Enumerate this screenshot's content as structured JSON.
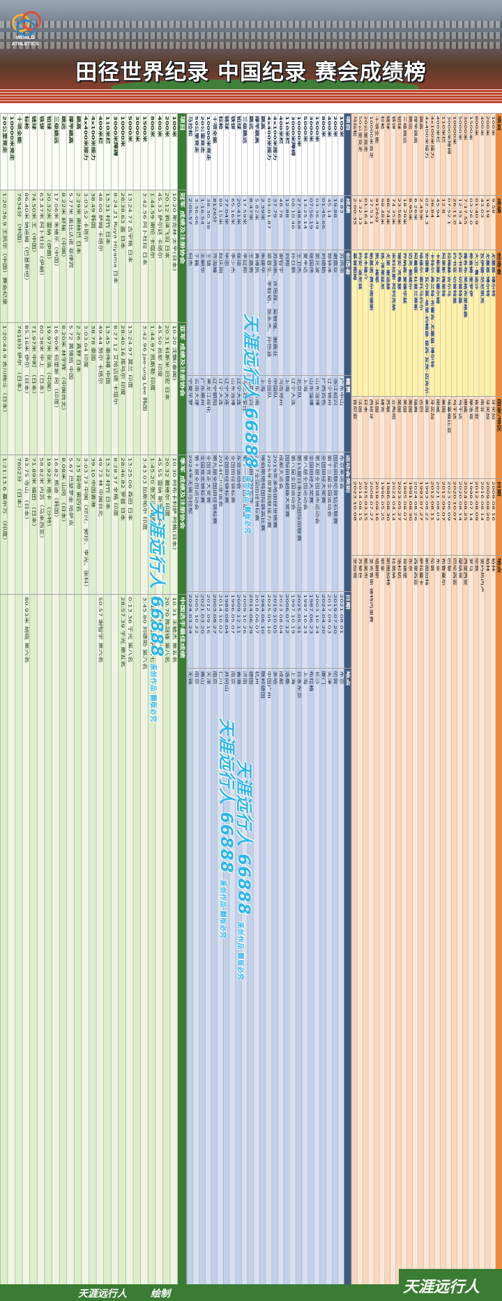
{
  "header": {
    "logo_text": "WORLD\nATHLETICS",
    "title": "田径世界纪录  中国纪录  赛会成绩榜"
  },
  "world_records": {
    "headers": [
      "项目",
      "成绩",
      "创造者",
      "国家/地区",
      "日期",
      "地点"
    ],
    "rows": [
      [
        "100米",
        "9.58",
        "尤塞恩·博尔特",
        "牙买加",
        "2009.08.16",
        "柏林"
      ],
      [
        "200米",
        "19.19",
        "尤塞恩·博尔特",
        "牙买加",
        "2009.08.20",
        "柏林"
      ],
      [
        "400米",
        "43.03",
        "瓦伊德·范尼凯克",
        "南非",
        "2016.08.14",
        "里约热内卢"
      ],
      [
        "800米",
        "01:40.9",
        "大卫·鲁迪沙",
        "肯尼亚",
        "2012.08.09",
        "伦敦"
      ],
      [
        "1500米",
        "03:26.0",
        "希查姆·奎罗伊",
        "摩洛哥",
        "1998.07.14",
        "罗马"
      ],
      [
        "3000米",
        "7:17.55",
        "雅各布·英格布里格森",
        "挪威",
        "2024.08.25",
        "西里西亚"
      ],
      [
        "5000米",
        "12:35.4",
        "约书亚·切普特盖",
        "乌干达",
        "2020.08.14",
        "摩纳哥"
      ],
      [
        "10000米",
        "26:11.0",
        "约书亚·切普特盖",
        "乌干达",
        "2020.10.07",
        "巴伦西亚"
      ],
      [
        "3000米障碍",
        "07:52.1",
        "拉梅赫·吉尔马",
        "埃塞俄比亚",
        "2023.06.09",
        "巴黎"
      ],
      [
        "110米栏",
        "12.8",
        "阿里斯·梅里特",
        "美国",
        "2012.09.07",
        "布鲁塞尔"
      ],
      [
        "400米栏",
        "45.94",
        "卡斯滕·瓦霍尔姆",
        "挪威",
        "2021.08.03",
        "东京"
      ],
      [
        "4x100米接力",
        "36.84",
        "卡特尔·弗兰特·布雷克·尤塞恩·博尔特",
        "牙买加",
        "2012.08.11",
        "伦敦"
      ],
      [
        "4x400米接力",
        "02:54.3",
        "安德鲁·瓦尔莫·哈里·约翰逊·昆西·瓦茨·迈克尔·约翰逊",
        "美国",
        "1993.08.22",
        "斯图加特"
      ],
      [
        "跳高",
        "2.45米",
        "哈维尔·索托马约尔",
        "古巴",
        "1993.07.27",
        "萨拉曼卡"
      ],
      [
        "撑竿跳高",
        "6.26米",
        "阿曼德·杜普兰蒂斯",
        "瑞典",
        "2024.08.26",
        "西里西亚"
      ],
      [
        "跳远",
        "8.95米",
        "迈克·鲍威尔",
        "美国",
        "1991.08.30",
        "东京"
      ],
      [
        "三级跳远",
        "18.29米",
        "乔纳森·爱德华兹",
        "英国",
        "1995.08.07",
        "哥德堡"
      ],
      [
        "铅球",
        "23.56米",
        "瑞安·克鲁瑟",
        "美国",
        "2023.05.27",
        "洛杉矶"
      ],
      [
        "铁饼",
        "74.35米",
        "米科拉斯·阿列克纳",
        "立陶宛",
        "2024.04.14",
        "拉莫纳"
      ],
      [
        "链球",
        "86.74米",
        "尤里·谢迪赫",
        "苏联",
        "1986.08.30",
        "斯图加特"
      ],
      [
        "标枪",
        "98.48米",
        "扬·泽莱兹尼",
        "捷克",
        "1996.05.25",
        "耶拿"
      ],
      [
        "十项全能",
        "9126分",
        "凯文·梅耶",
        "法国",
        "2018.09.16",
        "塔朗斯"
      ],
      [
        "10000米竞走",
        "37:53.1",
        "帕基诺·费尔南德斯",
        "西班牙",
        "2008.07.27",
        "圣克鲁斯·德特内里费"
      ],
      [
        "20公里竞走",
        "01:16.4",
        "铃木雄介",
        "日本",
        "2015.03.15",
        "能美市"
      ],
      [
        "50公里竞走",
        "3:32:33",
        "约安·迪尼兹",
        "法国",
        "2014.08.15",
        "苏黎世"
      ],
      [
        "马拉松",
        "2:00:35",
        "基普图姆",
        "肯尼亚",
        "2023.10.08",
        "芝加哥"
      ]
    ]
  },
  "china_records": {
    "headers": [
      "项目",
      "成绩",
      "创造者",
      "籍贯",
      "运动会类别",
      "日期",
      "地点"
    ],
    "rows": [
      [
        "100米",
        "9.83",
        "苏炳添",
        "广东中山",
        "东京奥运会",
        "2021.08.01",
        "东京"
      ],
      [
        "200米",
        "19.88",
        "谢震业",
        "浙江绍兴",
        "国际田联伦敦钻石联赛",
        "2019.07.20",
        "伦敦"
      ],
      [
        "400米",
        "45.14",
        "郭钟泽",
        "辽宁锦州",
        "第十三届全国运动会",
        "2017.09.03",
        "天津"
      ],
      [
        "800米",
        "01:45.66",
        "刘德助",
        "广西百色",
        "全国田径大奖赛",
        "2024.04.20",
        "厦门"
      ],
      [
        "1500米",
        "03:36.49",
        "窦兆波",
        "山东淄博",
        "第五届全国城市运动会",
        "2003.10.24",
        "长沙"
      ],
      [
        "3000米",
        "07:56.19",
        "张国伟",
        "山东淄博",
        "全国田径大奖赛",
        "1987.06.23",
        "布拉格"
      ],
      [
        "5000米",
        "13:25.14",
        "夏丰远",
        "上海",
        "第八届全国运动会",
        "1997.10.23",
        "上海"
      ],
      [
        "10000米",
        "27:48.68",
        "王卫杰",
        "北京队",
        "第15届日本NAG国际田联赛",
        "2025.05.31",
        "日本东京"
      ],
      [
        "3000米障碍",
        "08:10.46",
        "孙日鹏",
        "辽宁大连",
        "第八届全国运动会",
        "1997.10.19",
        "上海"
      ],
      [
        "110米栏",
        "12.88",
        "刘翔",
        "上海",
        "国际田联超级大奖赛",
        "2006.07.12",
        "洛桑"
      ],
      [
        "400米栏",
        "48.78",
        "谢智宇",
        "河南郑州",
        "成都大运会",
        "2023.08.04",
        "成都"
      ],
      [
        "4x100米接力",
        "37.79",
        "苏炳添、许周政、吴智强、谢震业",
        "中国队",
        "2019年多哈田径世锦赛",
        "2019.10.05",
        "多哈"
      ],
      [
        "4x400米接力",
        "03:01.87",
        "梁晋生、李毅韬、张永杰、孙恺涵",
        "中国队",
        "2025年世界田联接力赛",
        "2025.05.10",
        "中国广州"
      ],
      [
        "跳高",
        "2.39米",
        "朱建华",
        "上海",
        "埃伯斯塔特国际跳高比赛",
        "1984.06.10",
        "联邦德国"
      ],
      [
        "撑竿跳高",
        "5.82米",
        "黄博凯",
        "山东济南",
        "2017全国田径锦标赛",
        "2018.06.07",
        "杭州"
      ],
      [
        "跳远",
        "8.47米",
        "王嘉男",
        "北京大兴",
        "全国田径冠军赛",
        "2014.06.29",
        "德国"
      ],
      [
        "三级跳远",
        "17.59米",
        "李延熙",
        "河北石家庄",
        "第十一届全国运动会",
        "2009.10.26",
        "济南"
      ],
      [
        "铅球",
        "20.41米",
        "张竣",
        "辽宁大连",
        "东亚运动会",
        "2009.12.11",
        "香港"
      ],
      [
        "铁饼",
        "65.16米",
        "李少杰",
        "山东淄博",
        "全国田径锦标赛",
        "1996.05.07",
        "南京"
      ],
      [
        "链球",
        "77.04米",
        "毕忠",
        "辽宁大连",
        "全国田径锦标赛",
        "1989.08.04",
        "井冈山"
      ],
      [
        "标枪",
        "89.15米",
        "赵庆刚",
        "辽宁大连",
        "2014仁川亚运会",
        "2014.10.02",
        "仁川"
      ],
      [
        "十项全能",
        "8126分",
        "齐海峰",
        "辽宁朝阳",
        "第九届全国田径锦标赛",
        "2003.08.27",
        "南京"
      ],
      [
        "10000米竞走",
        "38:30.38",
        "王镇",
        "黑龙江绥化",
        "全国竞走大奖赛",
        "2012.09.16",
        "天津"
      ],
      [
        "20公里竞走",
        "1:16.54",
        "王朝华",
        "广东惠州",
        "全国竞走锦标赛",
        "2021.03.20",
        "黄山"
      ],
      [
        "50公里竞走",
        "3:36:06",
        "于巍",
        "云南大理",
        "第十届全国运动会",
        "2005.10.22",
        "南京"
      ],
      [
        "马拉松",
        "2:06:57",
        "何杰",
        "宁夏平罗",
        "2024年无锡马拉松",
        "2024.03.24",
        "无锡"
      ]
    ]
  },
  "competition_results": {
    "headers": [
      "项目",
      "冠军 成绩及注册协会",
      "亚军 成绩及注册协会",
      "季军 成绩及注册协会",
      "中国选手最佳成绩"
    ],
    "rows": [
      [
        "100米",
        "10.20 斯克林·太平(日本)",
        "10.20 沈飘(泰国)",
        "10.30 阿布卡利萨·阿格(日本)",
        "10.31 王毓杰 第五名"
      ],
      [
        "200米",
        "20.12 鹈泽飞羽 日本",
        "20.31 科斯米·旧宏 日本",
        "20.32 戴维尔 印度",
        "20.70 陈冠锋 第八名"
      ],
      [
        "400米",
        "45.33 萨尔廷 卡塔尔",
        "45.50 尚耶 印度",
        "45.55 雷纳 斯里兰卡",
        "46.21 付雄 第六名"
      ],
      [
        "800米",
        "1:44.59 谢伦 卡塔尔",
        "1:44.97 凯斯勒 印度",
        "1:45.20 张艺兴 印度",
        "1:48.40 吴瀚宇 第七名"
      ],
      [
        "1500米",
        "3:42.56 阿卜杜拉 日本",
        "3:42.96 Jae-ung Lee 韩国",
        "3:43.03 加斯帕尔 印度",
        "3:45.80 刘德助 第六名"
      ],
      [
        "3000米",
        "",
        "",
        "",
        ""
      ],
      [
        "5000米",
        "13:24.77 古宇格 日本",
        "13:24.97 莫兰 印度",
        "13:25.06 森田 日本",
        "0:13.36 于光 第八名"
      ],
      [
        "10000米",
        "28:38.63 盖 日本",
        "28:40.16 库马尔 印度",
        "28:46.82 罗普 日本",
        "28:57.39 于光 第五名"
      ],
      [
        "3000米障碍",
        "8:24.21 Ruya Hiyama 日本",
        "8:27.12 艾哈迈德 卡塔尔",
        "8:28.37 辛格 印度",
        ""
      ],
      [
        "110米栏",
        "13.31 村竹 日本",
        "13.45 秦伟搏 中国",
        "13.22 村竹 日本",
        ""
      ],
      [
        "400米栏",
        "48.00 萨姆 卡塔尔",
        "49.44 努尔 卡塔尔",
        "49.73 林 中国台北",
        "50.57 谢智宇 第六名"
      ],
      [
        "4x100米接力",
        "38.49 韩国",
        "38.78 泰国",
        "39.10 中国香港",
        ""
      ],
      [
        "4x400米接力",
        "3:03.52 卡塔尔",
        "3:03.04 印度",
        "3:03.73 中国（邓兴、郭珍、李光、张科）",
        ""
      ],
      [
        "跳高",
        "2.29米 谢赫巴 日本",
        "2.26 真野 日本",
        "2.15 段帅 第四名",
        ""
      ],
      [
        "撑竿跳高",
        "5.77米 奥比达诺 菲律宾",
        "5.72 黄博凯 中国",
        "5.67 巴瑟罗金 哈萨克",
        ""
      ],
      [
        "跳远",
        "8.22米 舒瑞 （中国）",
        "8.20米 林宇辉 （中国台北）",
        "8.08米 山冈 （日本）",
        ""
      ],
      [
        "三级跳远",
        "17.06米 朱维乐（中国）",
        "16.90米 何里斯 阿（印度）",
        "16.82 熊迪（韩国）",
        ""
      ],
      [
        "铅球",
        "20.32米 雷纳（伊朗）",
        "19.97米 张浩（中国）",
        "19.92米 塔卡 （沙特）",
        ""
      ],
      [
        "铁饼",
        "63.47米 阿卜杜拉 （伊朗）",
        "60.38米 中上 （日本）",
        "58.82米 内苏（马来西亚）",
        ""
      ],
      [
        "链球",
        "74.50米 王（中国）",
        "71.97米 中町 （日本）",
        "71.89米 福田 （日本）",
        ""
      ],
      [
        "标枪",
        "86.40米 纳迪姆（巴基斯坦）",
        "85.16米 伊尔 （日本）",
        "83.75 寺山 （日本）",
        "80.93米 胡晓 第六名"
      ],
      [
        "十项全能",
        "7634分 （中国）",
        "7618分 伊尔 （日本）",
        "7602分 （日本）",
        ""
      ],
      [
        "10000米竞走",
        "",
        "",
        "",
        ""
      ],
      [
        "20公里竞走",
        "1:20:36.9 王凯华（中国）赛会纪录",
        "1:20:44.9 吉川绚斗（日本）",
        "1:21:13.6 塞尔万 （印度）",
        ""
      ]
    ]
  },
  "watermark": {
    "text": "天涯远行人 66888",
    "tag": "原创作品 翻版必究"
  },
  "footer": {
    "author": "天涯远行人",
    "drawn": "绘制",
    "corner": "天涯远行人"
  },
  "colors": {
    "world": "#f08a38",
    "china": "#3d5a80",
    "games": "#3a7c33"
  }
}
